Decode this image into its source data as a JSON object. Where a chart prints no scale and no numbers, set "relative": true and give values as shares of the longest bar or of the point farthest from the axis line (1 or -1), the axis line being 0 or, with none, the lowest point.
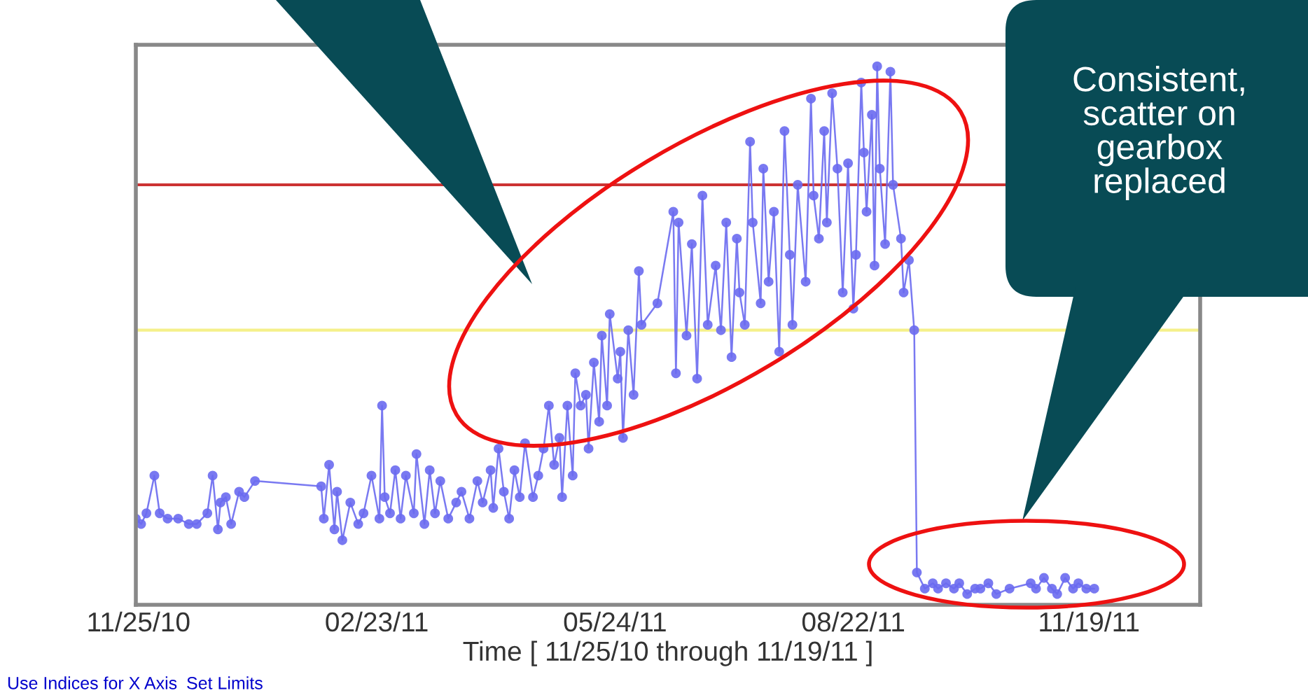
{
  "chart_data": {
    "type": "line",
    "relative": true,
    "marker": "circle",
    "line_style": "solid",
    "grid": false,
    "tick_labels": "x",
    "xlabel": "Time [ 11/25/10 through 11/19/11 ]",
    "xlim": [
      "2010-11-24",
      "2011-12-31"
    ],
    "xticks": [
      {
        "value": "2010-11-25",
        "label": "11/25/10"
      },
      {
        "value": "2011-02-23",
        "label": "02/23/11"
      },
      {
        "value": "2011-05-24",
        "label": "05/24/11"
      },
      {
        "value": "2011-08-22",
        "label": "08/22/11"
      },
      {
        "value": "2011-11-19",
        "label": "11/19/11"
      }
    ],
    "ref_lines": [
      {
        "axis": "y",
        "value": 0.78,
        "color": "#cc3333"
      },
      {
        "axis": "y",
        "value": 0.51,
        "color": "#f5f08a"
      }
    ],
    "annotations": [
      "Consistent,\nscatter on\ngearbox\nreplaced",
      "Use Indices for X Axis",
      "Set Limits"
    ],
    "x": [
      "2010-11-24",
      "2010-11-26",
      "2010-11-28",
      "2010-12-01",
      "2010-12-03",
      "2010-12-06",
      "2010-12-10",
      "2010-12-14",
      "2010-12-17",
      "2010-12-21",
      "2010-12-23",
      "2010-12-25",
      "2010-12-26",
      "2010-12-28",
      "2010-12-30",
      "2011-01-02",
      "2011-01-04",
      "2011-01-08",
      "2011-02-02",
      "2011-02-03",
      "2011-02-05",
      "2011-02-07",
      "2011-02-08",
      "2011-02-10",
      "2011-02-13",
      "2011-02-16",
      "2011-02-18",
      "2011-02-21",
      "2011-02-24",
      "2011-02-25",
      "2011-02-26",
      "2011-02-28",
      "2011-03-02",
      "2011-03-04",
      "2011-03-06",
      "2011-03-09",
      "2011-03-10",
      "2011-03-13",
      "2011-03-15",
      "2011-03-17",
      "2011-03-19",
      "2011-03-22",
      "2011-03-25",
      "2011-03-27",
      "2011-03-30",
      "2011-04-02",
      "2011-04-04",
      "2011-04-07",
      "2011-04-08",
      "2011-04-10",
      "2011-04-12",
      "2011-04-14",
      "2011-04-16",
      "2011-04-18",
      "2011-04-20",
      "2011-04-23",
      "2011-04-25",
      "2011-04-27",
      "2011-04-29",
      "2011-05-01",
      "2011-05-03",
      "2011-05-04",
      "2011-05-06",
      "2011-05-08",
      "2011-05-09",
      "2011-05-11",
      "2011-05-13",
      "2011-05-14",
      "2011-05-16",
      "2011-05-18",
      "2011-05-19",
      "2011-05-21",
      "2011-05-22",
      "2011-05-25",
      "2011-05-26",
      "2011-05-27",
      "2011-05-29",
      "2011-05-31",
      "2011-06-02",
      "2011-06-03",
      "2011-06-09",
      "2011-06-15",
      "2011-06-16",
      "2011-06-17",
      "2011-06-20",
      "2011-06-22",
      "2011-06-24",
      "2011-06-26",
      "2011-06-28",
      "2011-07-01",
      "2011-07-03",
      "2011-07-05",
      "2011-07-07",
      "2011-07-09",
      "2011-07-10",
      "2011-07-12",
      "2011-07-14",
      "2011-07-15",
      "2011-07-18",
      "2011-07-19",
      "2011-07-21",
      "2011-07-23",
      "2011-07-25",
      "2011-07-27",
      "2011-07-29",
      "2011-07-30",
      "2011-08-01",
      "2011-08-04",
      "2011-08-06",
      "2011-08-07",
      "2011-08-09",
      "2011-08-11",
      "2011-08-12",
      "2011-08-14",
      "2011-08-16",
      "2011-08-18",
      "2011-08-20",
      "2011-08-22",
      "2011-08-23",
      "2011-08-25",
      "2011-08-26",
      "2011-08-27",
      "2011-08-29",
      "2011-08-30",
      "2011-08-31",
      "2011-09-01",
      "2011-09-03",
      "2011-09-05",
      "2011-09-06",
      "2011-09-09",
      "2011-09-10",
      "2011-09-12",
      "2011-09-14",
      "2011-09-15",
      "2011-09-18",
      "2011-09-21",
      "2011-09-23",
      "2011-09-26",
      "2011-09-29",
      "2011-10-01",
      "2011-10-04",
      "2011-10-07",
      "2011-10-09",
      "2011-10-12",
      "2011-10-15",
      "2011-10-20",
      "2011-10-28",
      "2011-10-30",
      "2011-11-02",
      "2011-11-05",
      "2011-11-07",
      "2011-11-10",
      "2011-11-13",
      "2011-11-15",
      "2011-11-18",
      "2011-11-21"
    ],
    "series": [
      {
        "color": "#6a6af0",
        "values": [
          0.16,
          0.15,
          0.17,
          0.24,
          0.17,
          0.16,
          0.16,
          0.15,
          0.15,
          0.17,
          0.24,
          0.14,
          0.19,
          0.2,
          0.15,
          0.21,
          0.2,
          0.23,
          0.22,
          0.16,
          0.26,
          0.14,
          0.21,
          0.12,
          0.19,
          0.15,
          0.17,
          0.24,
          0.16,
          0.37,
          0.2,
          0.17,
          0.25,
          0.16,
          0.24,
          0.17,
          0.28,
          0.15,
          0.25,
          0.17,
          0.23,
          0.16,
          0.19,
          0.21,
          0.16,
          0.23,
          0.19,
          0.25,
          0.18,
          0.29,
          0.21,
          0.16,
          0.25,
          0.2,
          0.3,
          0.2,
          0.24,
          0.29,
          0.37,
          0.26,
          0.31,
          0.2,
          0.37,
          0.24,
          0.43,
          0.37,
          0.39,
          0.29,
          0.45,
          0.34,
          0.5,
          0.37,
          0.54,
          0.42,
          0.47,
          0.31,
          0.51,
          0.39,
          0.62,
          0.52,
          0.56,
          0.73,
          0.43,
          0.71,
          0.5,
          0.67,
          0.42,
          0.76,
          0.52,
          0.63,
          0.51,
          0.71,
          0.46,
          0.68,
          0.58,
          0.52,
          0.86,
          0.71,
          0.56,
          0.81,
          0.6,
          0.73,
          0.47,
          0.88,
          0.65,
          0.52,
          0.78,
          0.6,
          0.94,
          0.76,
          0.68,
          0.88,
          0.71,
          0.95,
          0.81,
          0.58,
          0.82,
          0.55,
          0.65,
          0.97,
          0.84,
          0.73,
          0.91,
          0.63,
          1.0,
          0.81,
          0.67,
          0.99,
          0.78,
          0.68,
          0.58,
          0.64,
          0.51,
          0.06,
          0.03,
          0.04,
          0.03,
          0.04,
          0.03,
          0.04,
          0.02,
          0.03,
          0.03,
          0.04,
          0.02,
          0.03,
          0.04,
          0.03,
          0.05,
          0.03,
          0.02,
          0.05,
          0.03,
          0.04,
          0.03,
          0.03
        ]
      }
    ]
  }
}
